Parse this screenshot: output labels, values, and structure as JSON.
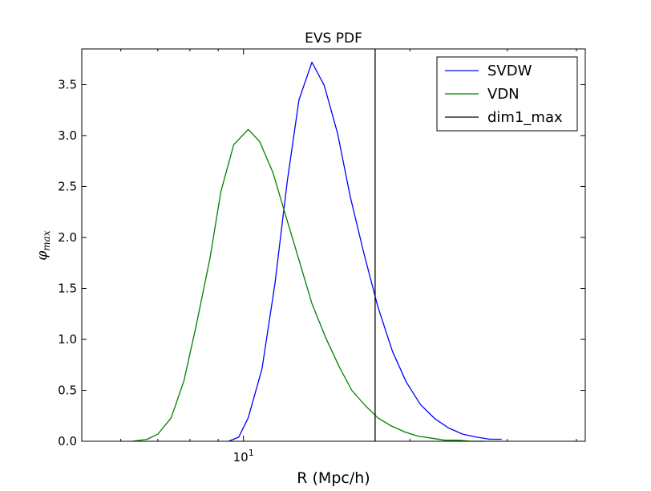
{
  "chart_data": {
    "type": "line",
    "title": "EVS PDF",
    "xlabel": "R (Mpc/h)",
    "ylabel": "φ",
    "ylabel_subscript": "max",
    "x_scale": "log",
    "xlim": [
      5.1,
      41.5
    ],
    "ylim": [
      0,
      3.85
    ],
    "y_ticks": [
      0.0,
      0.5,
      1.0,
      1.5,
      2.0,
      2.5,
      3.0,
      3.5
    ],
    "y_tick_labels": [
      "0.0",
      "0.5",
      "1.0",
      "1.5",
      "2.0",
      "2.5",
      "3.0",
      "3.5"
    ],
    "x_major_ticks": [
      10
    ],
    "x_tick_base": "10",
    "x_tick_exponent": "1",
    "legend_position": "upper right",
    "series": [
      {
        "name": "SVDW",
        "color": "#0000ff",
        "x": [
          9.4,
          9.8,
          10.2,
          10.8,
          11.4,
          12.0,
          12.6,
          13.3,
          14.0,
          14.8,
          15.6,
          16.5,
          17.5,
          18.6,
          19.7,
          20.9,
          22.2,
          23.5,
          24.9,
          26.4,
          27.9,
          29.3
        ],
        "y": [
          0.0,
          0.04,
          0.23,
          0.71,
          1.55,
          2.55,
          3.35,
          3.72,
          3.49,
          3.02,
          2.4,
          1.85,
          1.32,
          0.88,
          0.58,
          0.36,
          0.22,
          0.13,
          0.07,
          0.04,
          0.02,
          0.02
        ]
      },
      {
        "name": "VDN",
        "color": "#008000",
        "x": [
          6.3,
          6.7,
          7.0,
          7.4,
          7.8,
          8.2,
          8.7,
          9.1,
          9.6,
          10.2,
          10.7,
          11.3,
          11.9,
          12.6,
          13.3,
          14.1,
          14.9,
          15.7,
          16.6,
          17.5,
          18.5,
          19.6,
          20.7,
          21.9,
          23.1,
          24.4,
          25.8,
          27.3
        ],
        "y": [
          0.0,
          0.02,
          0.07,
          0.23,
          0.59,
          1.12,
          1.8,
          2.45,
          2.91,
          3.06,
          2.94,
          2.64,
          2.23,
          1.78,
          1.35,
          1.01,
          0.73,
          0.5,
          0.35,
          0.23,
          0.15,
          0.09,
          0.05,
          0.03,
          0.01,
          0.01,
          0.0,
          0.0
        ]
      },
      {
        "name": "dim1_max",
        "color": "#000000",
        "vline_x": 17.3
      }
    ]
  }
}
